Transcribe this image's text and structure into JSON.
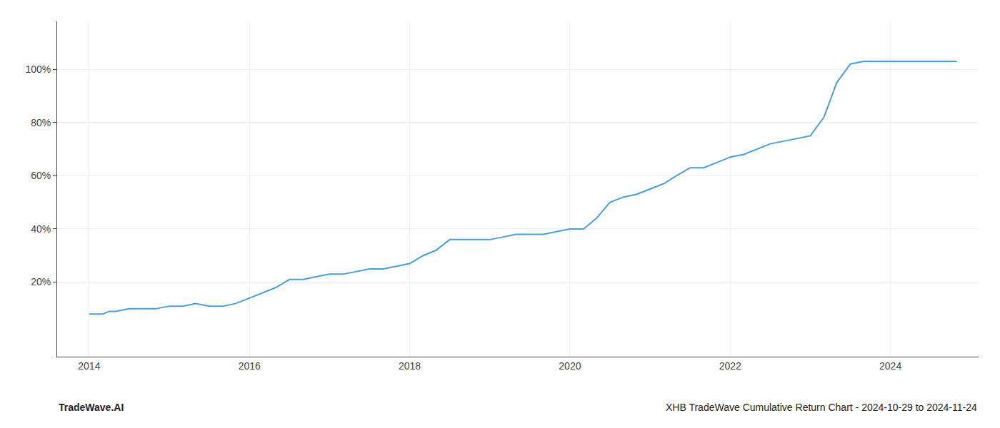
{
  "chart_data": {
    "type": "line",
    "x": [
      2014.0,
      2014.08,
      2014.17,
      2014.25,
      2014.33,
      2014.5,
      2014.67,
      2014.83,
      2015.0,
      2015.17,
      2015.33,
      2015.5,
      2015.67,
      2015.83,
      2016.0,
      2016.17,
      2016.33,
      2016.5,
      2016.67,
      2016.83,
      2017.0,
      2017.17,
      2017.33,
      2017.5,
      2017.67,
      2017.83,
      2018.0,
      2018.17,
      2018.33,
      2018.5,
      2018.67,
      2018.83,
      2019.0,
      2019.17,
      2019.33,
      2019.5,
      2019.67,
      2019.83,
      2020.0,
      2020.17,
      2020.33,
      2020.5,
      2020.67,
      2020.83,
      2021.0,
      2021.17,
      2021.33,
      2021.5,
      2021.67,
      2021.83,
      2022.0,
      2022.17,
      2022.33,
      2022.5,
      2022.67,
      2022.83,
      2023.0,
      2023.17,
      2023.33,
      2023.5,
      2023.67,
      2023.83,
      2024.0,
      2024.17,
      2024.33,
      2024.5,
      2024.67,
      2024.83
    ],
    "values": [
      8,
      8,
      8,
      9,
      9,
      10,
      10,
      10,
      11,
      11,
      12,
      11,
      11,
      12,
      14,
      16,
      18,
      21,
      21,
      22,
      23,
      23,
      24,
      25,
      25,
      26,
      27,
      30,
      32,
      36,
      36,
      36,
      36,
      37,
      38,
      38,
      38,
      39,
      40,
      40,
      44,
      50,
      52,
      53,
      55,
      57,
      60,
      63,
      63,
      65,
      67,
      68,
      70,
      72,
      73,
      74,
      75,
      82,
      95,
      102,
      103,
      103,
      103,
      103,
      103,
      103,
      103,
      103
    ],
    "color": "#4a9fd4",
    "xlim": [
      2013.6,
      2025.1
    ],
    "ylim": [
      -8,
      118
    ],
    "xticks": [
      2014,
      2016,
      2018,
      2020,
      2022,
      2024
    ],
    "yticks": [
      {
        "value": 20,
        "label": "20%"
      },
      {
        "value": 40,
        "label": "40%"
      },
      {
        "value": 60,
        "label": "60%"
      },
      {
        "value": 80,
        "label": "80%"
      },
      {
        "value": 100,
        "label": "100%"
      }
    ],
    "grid": true,
    "annotations": [
      "TradeWave.AI",
      "XHB TradeWave Cumulative Return Chart - 2024-10-29 to 2024-11-24"
    ]
  }
}
